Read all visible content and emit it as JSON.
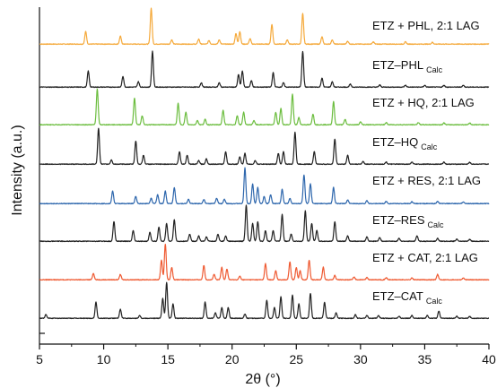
{
  "chart_data": {
    "type": "line",
    "title": "",
    "xlabel": "2θ (°)",
    "ylabel": "Intensity (a.u.)",
    "xlim": [
      5,
      40
    ],
    "x_ticks": [
      5,
      10,
      15,
      20,
      25,
      30,
      35,
      40
    ],
    "x_tick_labels": [
      "5",
      "10",
      "15",
      "20",
      "25",
      "30",
      "35",
      "40"
    ],
    "y_ticks_labeled": false,
    "grid": false,
    "legend": "none",
    "series": [
      {
        "label_main": "ETZ + PHL, 2:1 LAG",
        "label_sub": "",
        "color": "#f5a93a",
        "peaks": [
          [
            8.6,
            0.35
          ],
          [
            11.3,
            0.22
          ],
          [
            13.7,
            1.0
          ],
          [
            15.3,
            0.12
          ],
          [
            17.4,
            0.14
          ],
          [
            18.2,
            0.1
          ],
          [
            19.0,
            0.12
          ],
          [
            20.3,
            0.3
          ],
          [
            20.6,
            0.35
          ],
          [
            21.4,
            0.15
          ],
          [
            23.1,
            0.55
          ],
          [
            24.3,
            0.12
          ],
          [
            25.5,
            0.85
          ],
          [
            27.0,
            0.2
          ],
          [
            27.8,
            0.12
          ],
          [
            29.0,
            0.08
          ],
          [
            31.0,
            0.06
          ],
          [
            33.5,
            0.06
          ],
          [
            35.6,
            0.05
          ]
        ]
      },
      {
        "label_main": "ETZ–PHL",
        "label_sub": "Calc",
        "color": "#222222",
        "peaks": [
          [
            8.8,
            0.45
          ],
          [
            11.5,
            0.3
          ],
          [
            12.7,
            0.15
          ],
          [
            13.8,
            1.0
          ],
          [
            17.6,
            0.12
          ],
          [
            19.0,
            0.12
          ],
          [
            20.5,
            0.35
          ],
          [
            20.8,
            0.45
          ],
          [
            21.5,
            0.18
          ],
          [
            23.2,
            0.4
          ],
          [
            24.0,
            0.12
          ],
          [
            25.5,
            1.0
          ],
          [
            27.0,
            0.25
          ],
          [
            27.8,
            0.15
          ],
          [
            29.2,
            0.08
          ],
          [
            31.5,
            0.06
          ],
          [
            33.5,
            0.05
          ],
          [
            35.0,
            0.05
          ],
          [
            36.5,
            0.05
          ],
          [
            38.0,
            0.05
          ]
        ]
      },
      {
        "label_main": "ETZ + HQ, 2:1 LAG",
        "label_sub": "",
        "color": "#6bbd3e",
        "peaks": [
          [
            9.5,
            1.0
          ],
          [
            12.4,
            0.75
          ],
          [
            13.0,
            0.25
          ],
          [
            15.8,
            0.6
          ],
          [
            16.4,
            0.35
          ],
          [
            17.3,
            0.12
          ],
          [
            17.9,
            0.15
          ],
          [
            19.3,
            0.4
          ],
          [
            20.4,
            0.25
          ],
          [
            20.9,
            0.35
          ],
          [
            21.7,
            0.12
          ],
          [
            23.4,
            0.35
          ],
          [
            23.8,
            0.45
          ],
          [
            24.7,
            0.85
          ],
          [
            25.2,
            0.2
          ],
          [
            26.3,
            0.3
          ],
          [
            27.9,
            0.65
          ],
          [
            28.8,
            0.15
          ],
          [
            30.0,
            0.08
          ],
          [
            32.0,
            0.06
          ],
          [
            34.5,
            0.06
          ],
          [
            36.5,
            0.05
          ],
          [
            38.5,
            0.05
          ]
        ]
      },
      {
        "label_main": "ETZ–HQ",
        "label_sub": "Calc",
        "color": "#222222",
        "peaks": [
          [
            9.6,
            1.0
          ],
          [
            10.6,
            0.12
          ],
          [
            12.5,
            0.65
          ],
          [
            13.1,
            0.25
          ],
          [
            15.9,
            0.35
          ],
          [
            16.5,
            0.25
          ],
          [
            17.4,
            0.1
          ],
          [
            18.0,
            0.15
          ],
          [
            19.5,
            0.35
          ],
          [
            20.6,
            0.2
          ],
          [
            21.0,
            0.3
          ],
          [
            21.8,
            0.1
          ],
          [
            23.6,
            0.3
          ],
          [
            24.0,
            0.35
          ],
          [
            24.9,
            0.9
          ],
          [
            26.4,
            0.35
          ],
          [
            28.0,
            0.7
          ],
          [
            29.0,
            0.25
          ],
          [
            30.2,
            0.08
          ],
          [
            32.0,
            0.06
          ],
          [
            34.0,
            0.06
          ],
          [
            36.5,
            0.06
          ],
          [
            38.5,
            0.05
          ]
        ]
      },
      {
        "label_main": "ETZ + RES, 2:1 LAG",
        "label_sub": "",
        "color": "#2e67ad",
        "peaks": [
          [
            10.7,
            0.35
          ],
          [
            12.5,
            0.2
          ],
          [
            13.7,
            0.15
          ],
          [
            14.2,
            0.25
          ],
          [
            14.8,
            0.35
          ],
          [
            15.5,
            0.45
          ],
          [
            16.6,
            0.12
          ],
          [
            17.8,
            0.12
          ],
          [
            18.8,
            0.15
          ],
          [
            19.4,
            0.12
          ],
          [
            21.0,
            1.0
          ],
          [
            21.6,
            0.55
          ],
          [
            22.0,
            0.45
          ],
          [
            22.5,
            0.2
          ],
          [
            23.0,
            0.25
          ],
          [
            23.9,
            0.4
          ],
          [
            24.5,
            0.15
          ],
          [
            25.6,
            0.8
          ],
          [
            26.1,
            0.55
          ],
          [
            27.9,
            0.45
          ],
          [
            29.0,
            0.1
          ],
          [
            30.5,
            0.08
          ],
          [
            32.0,
            0.06
          ],
          [
            34.0,
            0.05
          ],
          [
            36.0,
            0.06
          ],
          [
            38.0,
            0.05
          ]
        ]
      },
      {
        "label_main": "ETZ–RES",
        "label_sub": "Calc",
        "color": "#222222",
        "peaks": [
          [
            10.8,
            0.55
          ],
          [
            12.3,
            0.3
          ],
          [
            13.6,
            0.25
          ],
          [
            14.3,
            0.4
          ],
          [
            14.9,
            0.5
          ],
          [
            15.5,
            0.6
          ],
          [
            16.7,
            0.2
          ],
          [
            17.4,
            0.15
          ],
          [
            18.0,
            0.12
          ],
          [
            18.9,
            0.2
          ],
          [
            19.5,
            0.15
          ],
          [
            21.1,
            1.0
          ],
          [
            21.6,
            0.5
          ],
          [
            22.0,
            0.55
          ],
          [
            22.6,
            0.3
          ],
          [
            23.2,
            0.3
          ],
          [
            23.9,
            0.75
          ],
          [
            24.6,
            0.2
          ],
          [
            25.7,
            0.85
          ],
          [
            26.2,
            0.5
          ],
          [
            26.6,
            0.3
          ],
          [
            28.0,
            0.55
          ],
          [
            29.0,
            0.15
          ],
          [
            30.5,
            0.12
          ],
          [
            31.5,
            0.1
          ],
          [
            33.0,
            0.08
          ],
          [
            34.4,
            0.15
          ],
          [
            36.0,
            0.08
          ],
          [
            37.5,
            0.06
          ],
          [
            38.5,
            0.05
          ]
        ]
      },
      {
        "label_main": "ETZ + CAT, 2:1 LAG",
        "label_sub": "",
        "color": "#ef5a32",
        "peaks": [
          [
            9.2,
            0.18
          ],
          [
            11.3,
            0.15
          ],
          [
            14.5,
            0.55
          ],
          [
            14.8,
            1.0
          ],
          [
            15.3,
            0.35
          ],
          [
            17.8,
            0.4
          ],
          [
            18.6,
            0.15
          ],
          [
            19.2,
            0.35
          ],
          [
            19.6,
            0.3
          ],
          [
            20.6,
            0.1
          ],
          [
            22.6,
            0.45
          ],
          [
            23.4,
            0.25
          ],
          [
            24.5,
            0.5
          ],
          [
            25.0,
            0.35
          ],
          [
            25.3,
            0.25
          ],
          [
            26.0,
            0.55
          ],
          [
            27.1,
            0.35
          ],
          [
            28.0,
            0.12
          ],
          [
            29.5,
            0.08
          ],
          [
            30.5,
            0.06
          ],
          [
            32.0,
            0.06
          ],
          [
            34.0,
            0.05
          ],
          [
            36.0,
            0.15
          ],
          [
            38.0,
            0.05
          ]
        ]
      },
      {
        "label_main": "ETZ–CAT",
        "label_sub": "Calc",
        "color": "#222222",
        "peaks": [
          [
            5.5,
            0.1
          ],
          [
            9.4,
            0.45
          ],
          [
            11.3,
            0.25
          ],
          [
            12.8,
            0.08
          ],
          [
            14.6,
            0.55
          ],
          [
            14.9,
            1.0
          ],
          [
            15.4,
            0.4
          ],
          [
            17.9,
            0.45
          ],
          [
            18.7,
            0.15
          ],
          [
            19.2,
            0.3
          ],
          [
            19.7,
            0.3
          ],
          [
            21.0,
            0.12
          ],
          [
            22.7,
            0.5
          ],
          [
            23.3,
            0.3
          ],
          [
            23.8,
            0.6
          ],
          [
            24.7,
            0.65
          ],
          [
            25.2,
            0.4
          ],
          [
            26.1,
            0.7
          ],
          [
            27.2,
            0.45
          ],
          [
            28.1,
            0.15
          ],
          [
            29.6,
            0.1
          ],
          [
            30.5,
            0.08
          ],
          [
            31.4,
            0.08
          ],
          [
            33.0,
            0.06
          ],
          [
            34.0,
            0.08
          ],
          [
            35.2,
            0.08
          ],
          [
            36.1,
            0.2
          ],
          [
            37.5,
            0.06
          ],
          [
            38.5,
            0.05
          ]
        ]
      }
    ]
  }
}
